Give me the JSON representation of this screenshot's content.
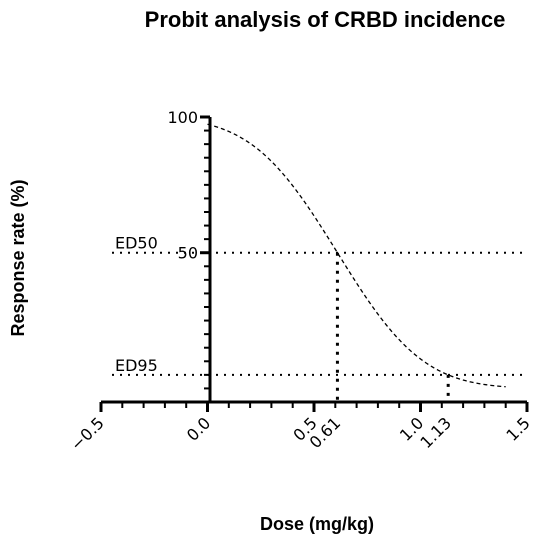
{
  "chart_data": {
    "type": "line",
    "title": "Probit analysis of CRBD incidence",
    "xlabel": "Dose (mg/kg)",
    "ylabel": "Response rate (%)",
    "xlim": [
      -0.5,
      1.5
    ],
    "ylim": [
      -5,
      100
    ],
    "x_ticks": [
      {
        "value": -0.5,
        "label": "−0.5"
      },
      {
        "value": 0.0,
        "label": "0.0"
      },
      {
        "value": 0.5,
        "label": "0.5"
      },
      {
        "value": 0.61,
        "label": "0.61"
      },
      {
        "value": 1.0,
        "label": "1.0"
      },
      {
        "value": 1.13,
        "label": "1.13"
      },
      {
        "value": 1.5,
        "label": "1.5"
      }
    ],
    "y_ticks": [
      {
        "value": 100,
        "label": "100"
      },
      {
        "value": 50,
        "label": "50"
      }
    ],
    "y_minor_step": 5,
    "x_minor_step": 0.1,
    "curve": {
      "mean": 0.61,
      "sd": 0.316,
      "x_start": 0.0,
      "x_end": 1.4,
      "style": "dashed"
    },
    "reference_lines": [
      {
        "label": "ED50",
        "y": 50,
        "x": 0.61
      },
      {
        "label": "ED95",
        "y": 5,
        "x": 1.13
      }
    ],
    "grid": false,
    "legend": "none"
  }
}
